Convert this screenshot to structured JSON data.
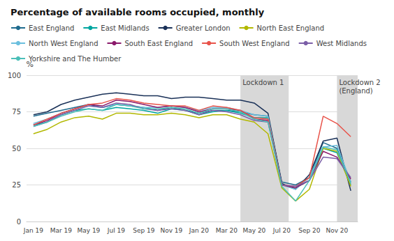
{
  "chart_data": {
    "type": "line",
    "title": "Percentage of available rooms occupied, monthly",
    "y_label": "%",
    "categories": [
      "Jan 19",
      null,
      "Mar 19",
      null,
      "May 19",
      null,
      "Jul 19",
      null,
      "Sep 19",
      null,
      "Nov 19",
      null,
      "Jan 20",
      null,
      "Mar 20",
      null,
      "May 20",
      null,
      "Jul 20",
      null,
      "Sep 20",
      null,
      "Nov 20",
      null
    ],
    "series": [
      {
        "name": "East England",
        "color": "#1f6b8e",
        "values": [
          72,
          74,
          76,
          78,
          80,
          78,
          80,
          79,
          78,
          76,
          78,
          76,
          74,
          76,
          76,
          75,
          73,
          72,
          27,
          25,
          30,
          54,
          50,
          27
        ]
      },
      {
        "name": "East Midlands",
        "color": "#00a6a0",
        "values": [
          66,
          68,
          73,
          76,
          77,
          76,
          78,
          77,
          76,
          74,
          77,
          76,
          73,
          75,
          76,
          74,
          71,
          71,
          25,
          23,
          28,
          50,
          47,
          25
        ]
      },
      {
        "name": "Greater London",
        "color": "#1a3158",
        "values": [
          73,
          75,
          80,
          83,
          85,
          87,
          88,
          87,
          86,
          86,
          84,
          85,
          85,
          84,
          83,
          83,
          81,
          74,
          26,
          22,
          32,
          55,
          57,
          21
        ]
      },
      {
        "name": "North East England",
        "color": "#b2b800",
        "values": [
          60,
          63,
          68,
          71,
          72,
          70,
          74,
          74,
          73,
          73,
          74,
          73,
          71,
          73,
          73,
          70,
          68,
          60,
          23,
          14,
          22,
          50,
          48,
          24
        ]
      },
      {
        "name": "North West England",
        "color": "#6bbfde",
        "values": [
          67,
          70,
          74,
          77,
          79,
          78,
          80,
          79,
          78,
          78,
          79,
          78,
          76,
          78,
          78,
          76,
          73,
          72,
          25,
          22,
          30,
          51,
          52,
          27
        ]
      },
      {
        "name": "South East England",
        "color": "#8b1a6b",
        "values": [
          66,
          69,
          74,
          77,
          80,
          79,
          83,
          82,
          80,
          78,
          79,
          78,
          75,
          77,
          77,
          76,
          70,
          69,
          25,
          23,
          28,
          48,
          44,
          29
        ]
      },
      {
        "name": "South West England",
        "color": "#e8534a",
        "values": [
          66,
          70,
          74,
          77,
          80,
          81,
          84,
          83,
          81,
          80,
          79,
          79,
          76,
          79,
          78,
          76,
          71,
          70,
          25,
          24,
          30,
          72,
          67,
          58
        ]
      },
      {
        "name": "West Midlands",
        "color": "#7b5ea7",
        "values": [
          65,
          68,
          73,
          76,
          79,
          78,
          81,
          80,
          77,
          76,
          77,
          76,
          73,
          76,
          75,
          73,
          69,
          68,
          25,
          24,
          28,
          44,
          43,
          30
        ]
      },
      {
        "name": "Yorkshire and The Humber",
        "color": "#4bbfb8",
        "values": [
          65,
          68,
          72,
          75,
          77,
          76,
          80,
          79,
          77,
          77,
          78,
          77,
          74,
          77,
          77,
          75,
          70,
          68,
          24,
          14,
          28,
          51,
          49,
          26
        ]
      }
    ],
    "ylim": [
      0,
      100
    ],
    "yticks": [
      0,
      25,
      50,
      75,
      100
    ],
    "grid": true,
    "legend": "top",
    "shaded_spans": [
      {
        "x": [
          15.0,
          18.5
        ],
        "label": "Lockdown 1"
      },
      {
        "x": [
          22.0,
          23.6
        ],
        "label": "Lockdown 2\n(England)"
      }
    ],
    "shade_color": "#d8d8d8"
  }
}
